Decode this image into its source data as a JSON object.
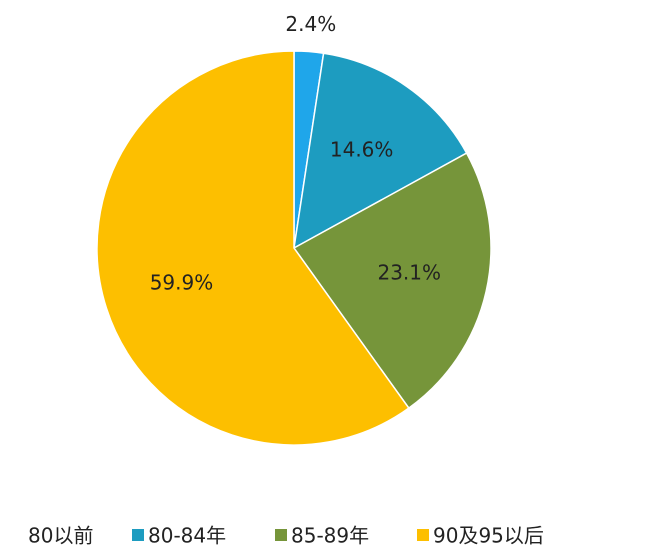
{
  "chart_data": {
    "type": "pie",
    "categories": [
      "80以前",
      "80-84年",
      "85-89年",
      "90及95以后"
    ],
    "values": [
      2.4,
      14.6,
      23.1,
      59.9
    ],
    "value_labels": [
      "2.4%",
      "14.6%",
      "23.1%",
      "59.9%"
    ],
    "colors": [
      "#1fa6ea",
      "#1d9cc0",
      "#76953a",
      "#fdbf00"
    ],
    "legend": "bottom"
  }
}
